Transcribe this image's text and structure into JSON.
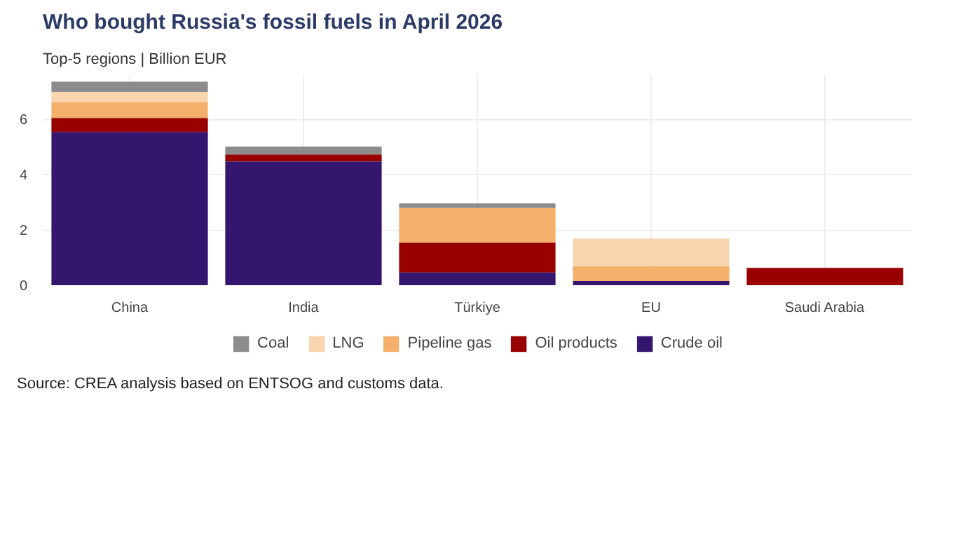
{
  "chart_data": {
    "type": "bar",
    "title": "Who bought Russia's fossil fuels in April 2026",
    "subtitle": "Top-5 regions | Billion EUR",
    "categories": [
      "China",
      "India",
      "Türkiye",
      "EU",
      "Saudi Arabia"
    ],
    "stacked": true,
    "series": [
      {
        "name": "Crude oil",
        "color": "#35166e",
        "values": [
          5.54,
          4.48,
          0.46,
          0.15,
          0
        ]
      },
      {
        "name": "Oil products",
        "color": "#990000",
        "values": [
          0.51,
          0.25,
          1.08,
          0,
          0.63
        ]
      },
      {
        "name": "Pipeline gas",
        "color": "#f4b06a",
        "values": [
          0.56,
          0,
          1.25,
          0.54,
          0
        ]
      },
      {
        "name": "LNG",
        "color": "#f9d5b0",
        "values": [
          0.38,
          0,
          0,
          1.0,
          0
        ]
      },
      {
        "name": "Coal",
        "color": "#8c8c8c",
        "values": [
          0.37,
          0.28,
          0.17,
          0,
          0
        ]
      }
    ],
    "ylim": [
      0,
      7.6
    ],
    "yticks": [
      0,
      2,
      4,
      6
    ],
    "grid": true,
    "legend": "bottom",
    "annotations": [
      "Source: CREA analysis based on ENTSOG and customs data."
    ]
  }
}
